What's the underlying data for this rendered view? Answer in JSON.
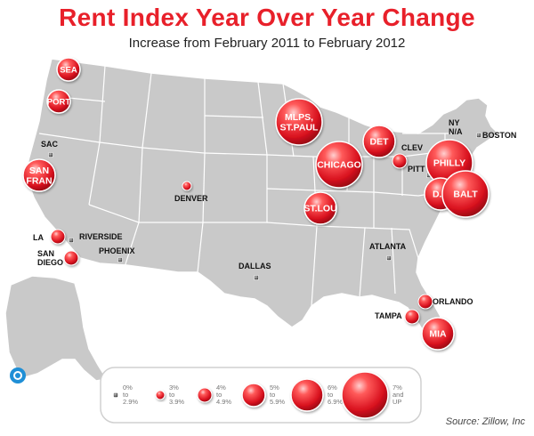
{
  "title": "Rent Index Year Over Year Change",
  "subtitle": "Increase from February 2011 to February 2012",
  "source": "Source: Zillow, Inc",
  "colors": {
    "bubble": "#d9121f",
    "bubble_light": "#ff8080",
    "land": "#c9c9c9",
    "border": "#ffffff",
    "title": "#e8202a"
  },
  "legend": [
    {
      "label1": "0%",
      "label2": "to",
      "label3": "2.9%",
      "tier": 0
    },
    {
      "label1": "3%",
      "label2": "to",
      "label3": "3.9%",
      "tier": 1
    },
    {
      "label1": "4%",
      "label2": "to",
      "label3": "4.9%",
      "tier": 2
    },
    {
      "label1": "5%",
      "label2": "to",
      "label3": "5.9%",
      "tier": 3
    },
    {
      "label1": "6%",
      "label2": "to",
      "label3": "6.9%",
      "tier": 4
    },
    {
      "label1": "7%",
      "label2": "and",
      "label3": "UP",
      "tier": 5
    }
  ],
  "cities": [
    {
      "id": "sea",
      "lines": [
        "SEA"
      ],
      "tier": 3,
      "label_inside": true
    },
    {
      "id": "port",
      "lines": [
        "PORT"
      ],
      "tier": 3,
      "label_inside": true
    },
    {
      "id": "sac",
      "lines": [
        "SAC"
      ],
      "tier": 0,
      "label_inside": false
    },
    {
      "id": "san-fran",
      "lines": [
        "SAN",
        "FRAN"
      ],
      "tier": 4,
      "label_inside": true
    },
    {
      "id": "la",
      "lines": [
        "LA"
      ],
      "tier": 2,
      "label_inside": false
    },
    {
      "id": "riverside",
      "lines": [
        "RIVERSIDE"
      ],
      "tier": 0,
      "label_inside": false
    },
    {
      "id": "san-diego",
      "lines": [
        "SAN",
        "DIEGO"
      ],
      "tier": 2,
      "label_inside": false
    },
    {
      "id": "phoenix",
      "lines": [
        "PHOENIX"
      ],
      "tier": 0,
      "label_inside": false
    },
    {
      "id": "denver",
      "lines": [
        "DENVER"
      ],
      "tier": 1,
      "label_inside": false
    },
    {
      "id": "dallas",
      "lines": [
        "DALLAS"
      ],
      "tier": 0,
      "label_inside": false
    },
    {
      "id": "mlps",
      "lines": [
        "MLPS,",
        "ST.PAUL"
      ],
      "tier": 5,
      "label_inside": true
    },
    {
      "id": "chicago",
      "lines": [
        "CHICAGO"
      ],
      "tier": 5,
      "label_inside": true
    },
    {
      "id": "stlou",
      "lines": [
        "ST.LOU"
      ],
      "tier": 4,
      "label_inside": true
    },
    {
      "id": "det",
      "lines": [
        "DET"
      ],
      "tier": 4,
      "label_inside": true
    },
    {
      "id": "clev",
      "lines": [
        "CLEV"
      ],
      "tier": 2,
      "label_inside": false
    },
    {
      "id": "pitt",
      "lines": [
        "PITT"
      ],
      "tier": 0,
      "label_inside": false
    },
    {
      "id": "ny",
      "lines": [
        "NY",
        "N/A"
      ],
      "tier": -1,
      "label_inside": false
    },
    {
      "id": "boston",
      "lines": [
        "BOSTON"
      ],
      "tier": 0,
      "label_inside": false
    },
    {
      "id": "philly",
      "lines": [
        "PHILLY"
      ],
      "tier": 5,
      "label_inside": true
    },
    {
      "id": "dc",
      "lines": [
        "D.C"
      ],
      "tier": 4,
      "label_inside": true
    },
    {
      "id": "balt",
      "lines": [
        "BALT"
      ],
      "tier": 5,
      "label_inside": true
    },
    {
      "id": "atlanta",
      "lines": [
        "ATLANTA"
      ],
      "tier": 0,
      "label_inside": false
    },
    {
      "id": "orlando",
      "lines": [
        "ORLANDO"
      ],
      "tier": 2,
      "label_inside": false
    },
    {
      "id": "tampa",
      "lines": [
        "TAMPA"
      ],
      "tier": 2,
      "label_inside": false
    },
    {
      "id": "mia",
      "lines": [
        "MIA"
      ],
      "tier": 4,
      "label_inside": true
    }
  ]
}
